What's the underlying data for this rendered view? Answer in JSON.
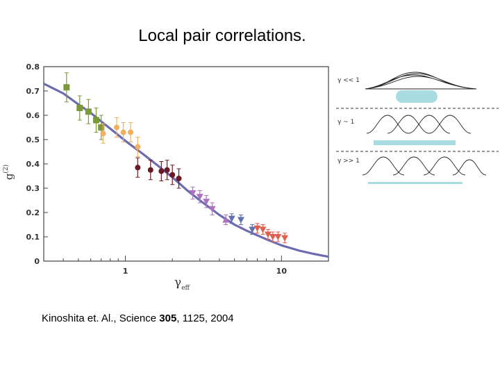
{
  "slide": {
    "title": "Local pair correlations.",
    "citation": {
      "prefix": "Kinoshita et. Al., Science ",
      "volume": "305",
      "rest": ", 1125, 2004"
    }
  },
  "chart_data": {
    "type": "scatter",
    "xscale": "log",
    "xlim": [
      0.3,
      20
    ],
    "ylim": [
      0,
      0.8
    ],
    "xticks": [
      1,
      10
    ],
    "yticks": [
      0,
      0.1,
      0.2,
      0.3,
      0.4,
      0.5,
      0.6,
      0.7,
      0.8
    ],
    "ytick_labels": [
      "0",
      "0.1",
      "0.2",
      "0.3",
      "0.4",
      "0.5",
      "0.6",
      "0.7",
      "0.8"
    ],
    "xtick_labels": [
      "1",
      "10"
    ],
    "xlabel": "γ",
    "xlabel_sub": "eff",
    "ylabel": "g",
    "ylabel_sup": "(2)",
    "series": [
      {
        "marker": "square",
        "color": "#7a9a3a",
        "points": [
          [
            0.42,
            0.715,
            0.06
          ],
          [
            0.51,
            0.63,
            0.05
          ],
          [
            0.58,
            0.615,
            0.05
          ],
          [
            0.65,
            0.58,
            0.05
          ],
          [
            0.7,
            0.55,
            0.05
          ]
        ]
      },
      {
        "marker": "circle",
        "color": "#f0b060",
        "points": [
          [
            0.72,
            0.525,
            0.04
          ],
          [
            0.88,
            0.55,
            0.04
          ],
          [
            0.97,
            0.53,
            0.04
          ],
          [
            1.08,
            0.53,
            0.04
          ],
          [
            1.2,
            0.47,
            0.04
          ]
        ]
      },
      {
        "marker": "circle",
        "color": "#6a1a24",
        "points": [
          [
            1.2,
            0.385,
            0.04
          ],
          [
            1.45,
            0.375,
            0.04
          ],
          [
            1.7,
            0.37,
            0.04
          ],
          [
            1.85,
            0.375,
            0.04
          ],
          [
            2.0,
            0.355,
            0.04
          ],
          [
            2.2,
            0.34,
            0.04
          ]
        ]
      },
      {
        "marker": "triangle-down",
        "color": "#b070c0",
        "points": [
          [
            2.7,
            0.28,
            0.025
          ],
          [
            3.0,
            0.265,
            0.025
          ],
          [
            3.3,
            0.245,
            0.025
          ],
          [
            3.6,
            0.215,
            0.025
          ]
        ]
      },
      {
        "marker": "triangle-up",
        "color": "#b070c0",
        "points": [
          [
            4.4,
            0.17,
            0.02
          ]
        ]
      },
      {
        "marker": "triangle-down",
        "color": "#6070b0",
        "points": [
          [
            4.8,
            0.175,
            0.02
          ],
          [
            5.5,
            0.17,
            0.02
          ],
          [
            6.5,
            0.13,
            0.02
          ]
        ]
      },
      {
        "marker": "triangle-down",
        "color": "#e06050",
        "points": [
          [
            7.0,
            0.135,
            0.02
          ],
          [
            7.6,
            0.13,
            0.02
          ],
          [
            8.2,
            0.11,
            0.02
          ],
          [
            8.8,
            0.1,
            0.02
          ],
          [
            9.5,
            0.1,
            0.02
          ],
          [
            10.5,
            0.095,
            0.02
          ]
        ]
      }
    ],
    "theory_curve": {
      "color": "#6b6bb0",
      "x": [
        0.3,
        0.4,
        0.5,
        0.6,
        0.7,
        0.8,
        1.0,
        1.3,
        1.6,
        2.0,
        2.5,
        3.0,
        4.0,
        5.0,
        6.0,
        8.0,
        10.0,
        13.0,
        16.0,
        20.0
      ],
      "y": [
        0.73,
        0.69,
        0.645,
        0.61,
        0.575,
        0.545,
        0.495,
        0.44,
        0.395,
        0.345,
        0.29,
        0.25,
        0.19,
        0.15,
        0.125,
        0.09,
        0.065,
        0.043,
        0.03,
        0.018
      ]
    }
  },
  "schematic": {
    "rows": [
      {
        "label": "γ << 1",
        "regime": "overlapping"
      },
      {
        "label": "γ ~ 1",
        "regime": "intermediate"
      },
      {
        "label": "γ >> 1",
        "regime": "separated"
      }
    ],
    "bar_color": "#a8dce0"
  }
}
